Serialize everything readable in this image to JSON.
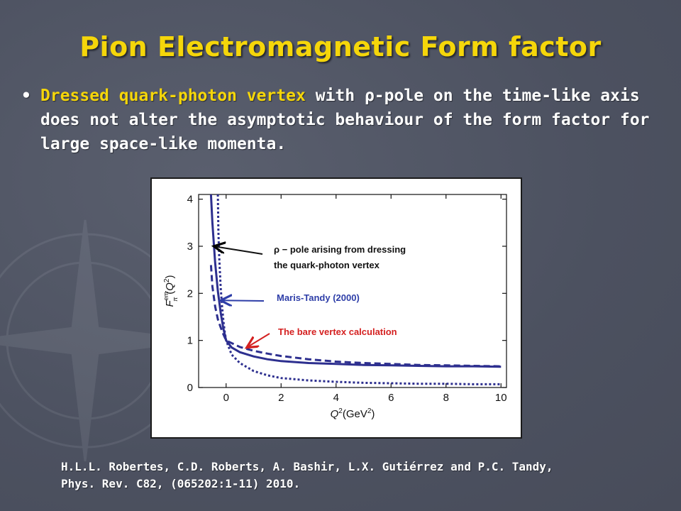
{
  "slide": {
    "title": "Pion Electromagnetic Form factor",
    "bullet": {
      "marker": "•",
      "highlight": "Dressed quark-photon vertex",
      "text": " with ρ-pole on the time-like axis does not alter the asymptotic behaviour of the form factor for large space-like momenta."
    },
    "citation_line1": "H.L.L. Robertes, C.D. Roberts, A. Bashir, L.X. Gutiérrez and P.C. Tandy,",
    "citation_line2": "Phys. Rev. C82, (065202:1-11) 2010."
  },
  "colors": {
    "title": "#f5d60a",
    "background": "#4f5462",
    "curve": "#2d2f8f",
    "annotation_blue": "#2e3ea8",
    "annotation_red": "#d42020"
  },
  "chart_data": {
    "type": "line",
    "xlabel": "Q²(GeV²)",
    "ylabel": "F_π^em(Q²)",
    "xlim": [
      -1.0,
      10.2
    ],
    "ylim": [
      0,
      4.1
    ],
    "xticks": [
      "0",
      "2",
      "4",
      "6",
      "8",
      "10"
    ],
    "yticks": [
      "0",
      "1",
      "2",
      "3",
      "4"
    ],
    "grid": false,
    "series": [
      {
        "style": "solid",
        "x": [
          -0.55,
          -0.5,
          -0.4,
          -0.3,
          -0.2,
          -0.1,
          0,
          0.2,
          0.5,
          1,
          1.5,
          2,
          3,
          4,
          5,
          6,
          7,
          8,
          9,
          10
        ],
        "y": [
          4.1,
          3.5,
          2.65,
          2.05,
          1.6,
          1.25,
          1.0,
          0.85,
          0.75,
          0.66,
          0.6,
          0.56,
          0.52,
          0.5,
          0.48,
          0.47,
          0.46,
          0.45,
          0.45,
          0.44
        ]
      },
      {
        "style": "dashed",
        "x": [
          -0.55,
          -0.5,
          -0.4,
          -0.3,
          -0.2,
          -0.1,
          0,
          0.5,
          1,
          1.5,
          2,
          3,
          4,
          5,
          6,
          7,
          8,
          9,
          10
        ],
        "y": [
          2.6,
          2.15,
          1.72,
          1.45,
          1.28,
          1.13,
          1.0,
          0.86,
          0.78,
          0.72,
          0.67,
          0.6,
          0.55,
          0.52,
          0.5,
          0.48,
          0.47,
          0.46,
          0.45
        ]
      },
      {
        "style": "dotted",
        "x": [
          -0.3,
          -0.28,
          -0.25,
          -0.2,
          -0.15,
          -0.1,
          -0.05,
          0,
          0.2,
          0.5,
          1,
          1.5,
          2,
          3,
          4,
          5,
          6,
          7,
          8,
          9,
          10
        ],
        "y": [
          4.1,
          3.3,
          2.75,
          2.15,
          1.75,
          1.42,
          1.18,
          1.0,
          0.7,
          0.52,
          0.35,
          0.26,
          0.2,
          0.15,
          0.12,
          0.1,
          0.09,
          0.08,
          0.08,
          0.07,
          0.07
        ]
      }
    ],
    "annotations": [
      {
        "line1": "ρ − pole arising from dressing",
        "line2": "the quark-photon vertex",
        "color": "black",
        "arrow_to": [
          -0.45,
          3.0
        ]
      },
      {
        "line1": "Maris-Tandy (2000)",
        "line2": "",
        "color": "blue",
        "arrow_to": [
          -0.2,
          1.85
        ]
      },
      {
        "line1": "The bare vertex calculation",
        "line2": "",
        "color": "red",
        "arrow_to": [
          0.75,
          0.85
        ]
      }
    ]
  }
}
